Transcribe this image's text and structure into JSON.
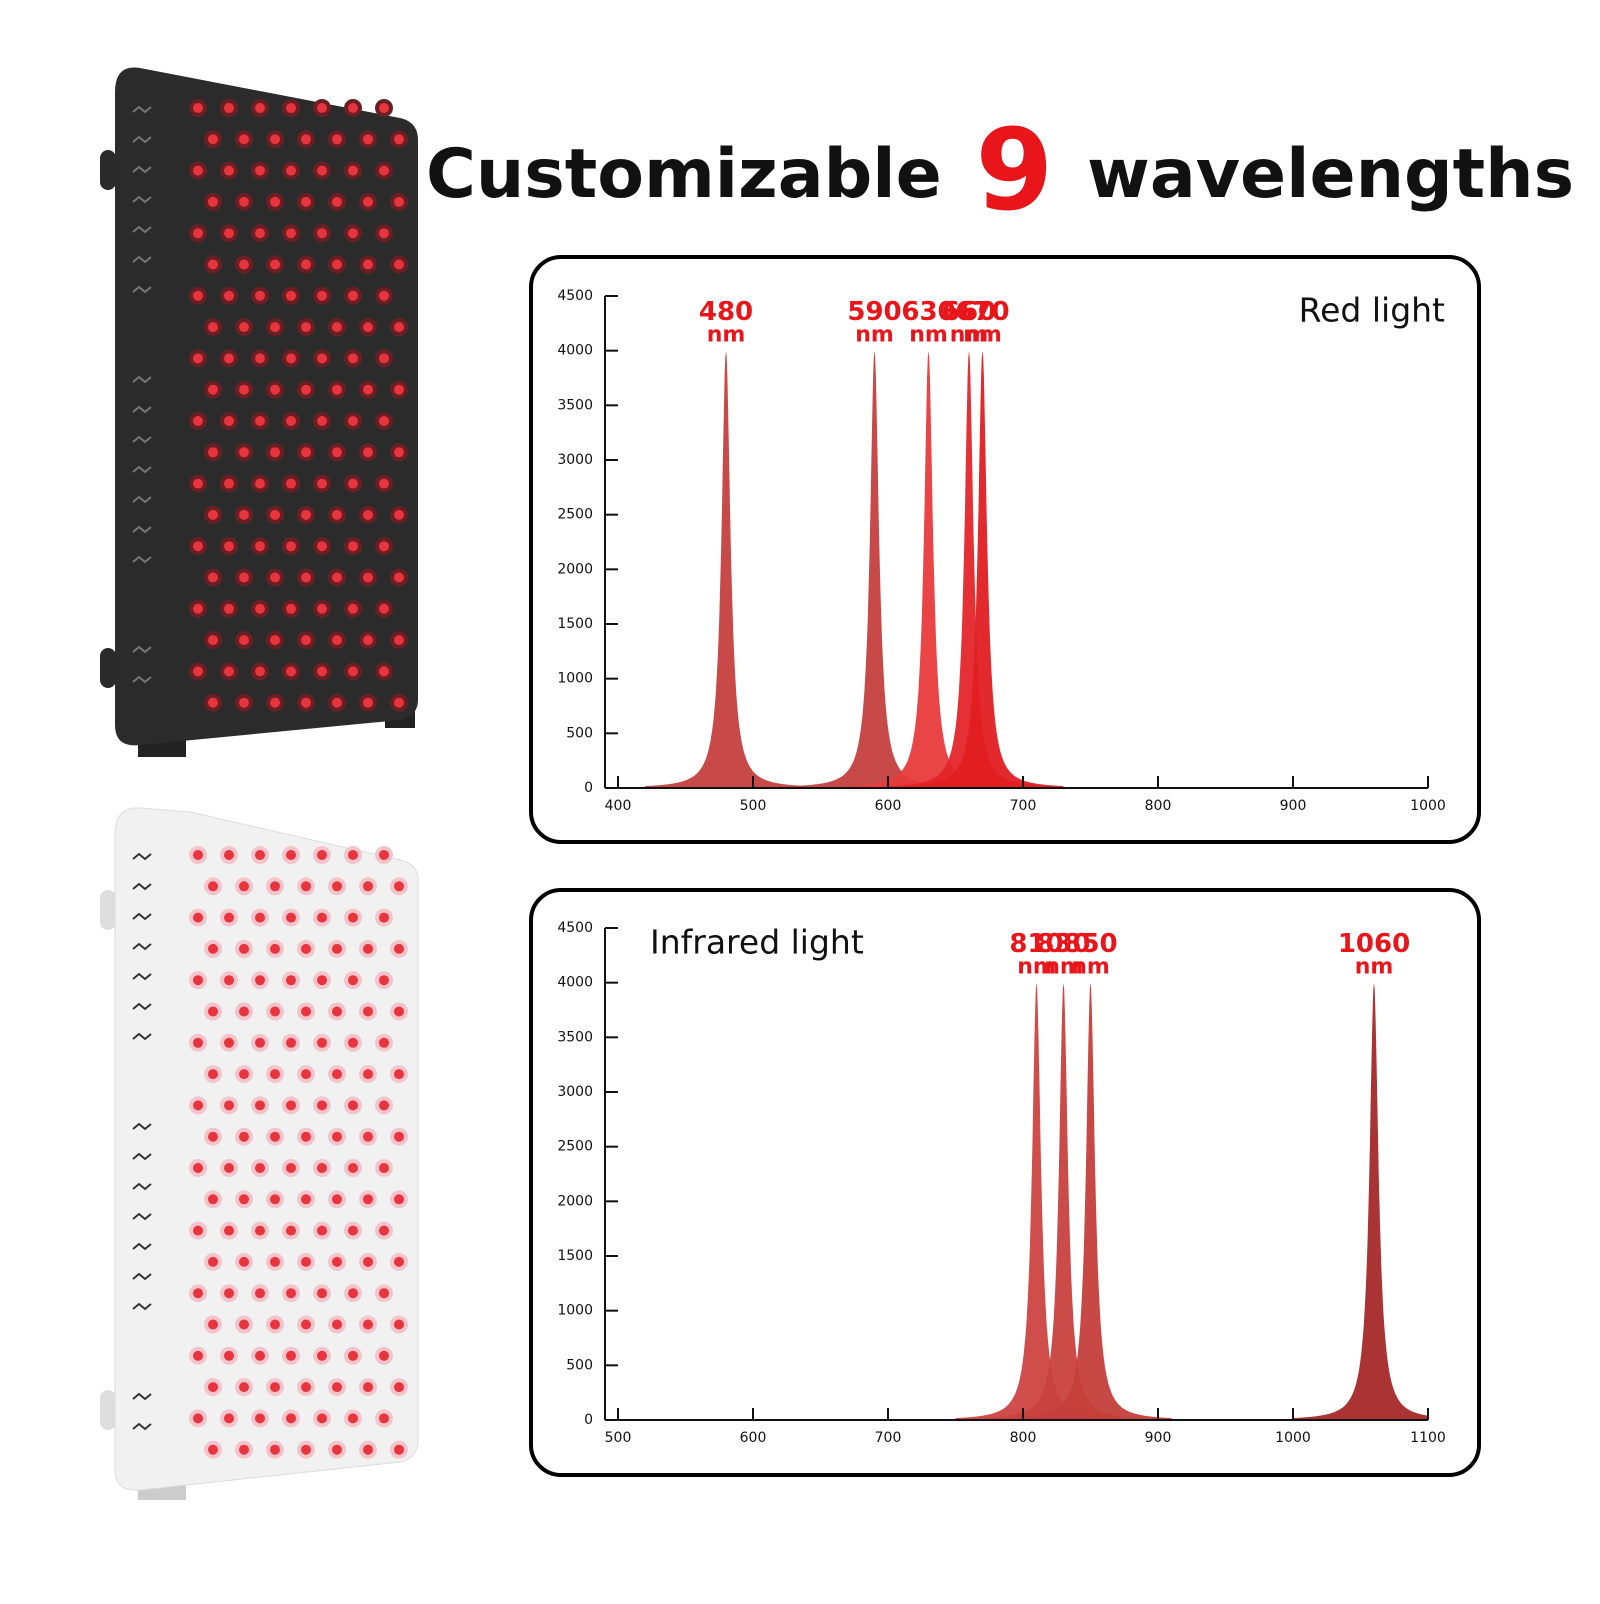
{
  "header": {
    "title_start": "Customizable",
    "title_number": "9",
    "title_end": "wavelengths"
  },
  "chart_data": [
    {
      "type": "spectrum",
      "label": "Red light",
      "label_corner": "top-right",
      "unit": "nm",
      "xlim": [
        400,
        1000
      ],
      "xticks": [
        400,
        500,
        600,
        700,
        800,
        900,
        1000
      ],
      "ylim": [
        0,
        4500
      ],
      "yticks": [
        0,
        500,
        1000,
        1500,
        2000,
        2500,
        3000,
        3500,
        4000,
        4500
      ],
      "x": [
        480,
        590,
        630,
        660,
        670
      ],
      "values": [
        4000,
        4000,
        4000,
        4000,
        4000
      ],
      "colors": [
        "#c4403e",
        "#c4403e",
        "#e83a3c",
        "#e4252a",
        "#e01e22"
      ]
    },
    {
      "type": "spectrum",
      "label": "Infrared light",
      "label_corner": "top-left",
      "unit": "nm",
      "xlim": [
        500,
        1100
      ],
      "xticks": [
        500,
        600,
        700,
        800,
        900,
        1000,
        1100
      ],
      "ylim": [
        0,
        4500
      ],
      "yticks": [
        0,
        500,
        1000,
        1500,
        2000,
        2500,
        3000,
        3500,
        4000,
        4500
      ],
      "x": [
        810,
        830,
        850,
        1060
      ],
      "values": [
        4000,
        4000,
        4000,
        4000
      ],
      "colors": [
        "#cc4542",
        "#c8413e",
        "#c43e3b",
        "#a52828"
      ]
    }
  ]
}
